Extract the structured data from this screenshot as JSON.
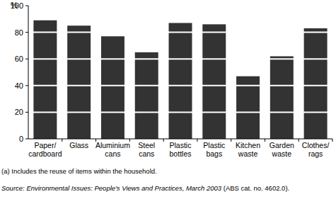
{
  "chart_data": {
    "type": "bar",
    "y_label": "%",
    "categories": [
      "Paper/ cardboard",
      "Glass",
      "Aluminium cans",
      "Steel cans",
      "Plastic bottles",
      "Plastic bags",
      "Kitchen waste",
      "Garden waste",
      "Clothes/ rags"
    ],
    "values": [
      89,
      85,
      77,
      65,
      87,
      86,
      47,
      62,
      83
    ],
    "color": "#333333",
    "ylim": [
      0,
      100
    ],
    "yticks": [
      0,
      20,
      40,
      60,
      80,
      100
    ],
    "grid": true,
    "notes": [
      "(a) Includes the reuse of items within the household.",
      "Source: Environmental Issues: People's Views and Practices, March 2003 (ABS cat. no. 4602.0)."
    ]
  }
}
